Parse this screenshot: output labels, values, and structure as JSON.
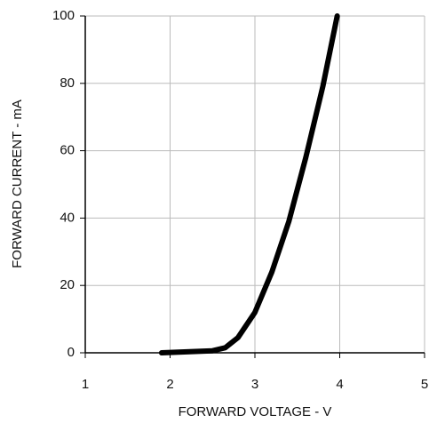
{
  "chart_data": {
    "type": "line",
    "x_label": "FORWARD VOLTAGE - V",
    "y_label": "FORWARD CURRENT - mA",
    "x": [
      1.9,
      2.2,
      2.5,
      2.65,
      2.8,
      3.0,
      3.2,
      3.4,
      3.6,
      3.8,
      3.97
    ],
    "series": [
      {
        "color": "#000000",
        "values": [
          0,
          0.3,
          0.6,
          1.5,
          4.5,
          12,
          24,
          39,
          58,
          79,
          100
        ]
      }
    ],
    "xlim": [
      1,
      5
    ],
    "xticks": [
      1,
      2,
      3,
      4,
      5
    ],
    "ylim": [
      0,
      100
    ],
    "yticks": [
      0,
      20,
      40,
      60,
      80,
      100
    ],
    "grid": true
  }
}
